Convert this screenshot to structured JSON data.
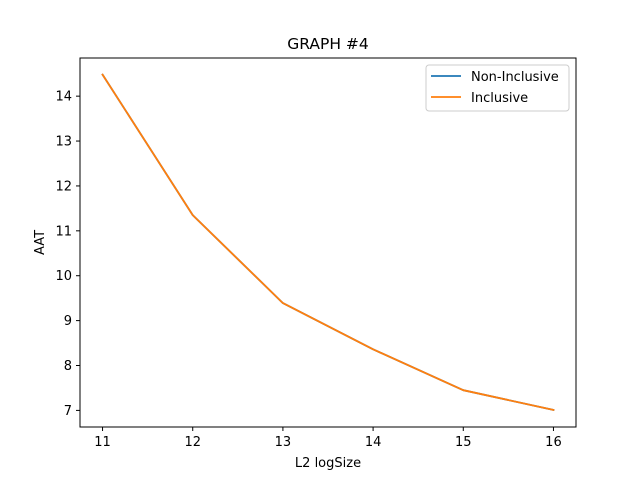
{
  "chart_data": {
    "type": "line",
    "title": "GRAPH #4",
    "xlabel": "L2 logSize",
    "ylabel": "AAT",
    "x": [
      11,
      12,
      13,
      14,
      15,
      16
    ],
    "xticks": [
      11,
      12,
      13,
      14,
      15,
      16
    ],
    "yticks": [
      7,
      8,
      9,
      10,
      11,
      12,
      13,
      14
    ],
    "xlim": [
      10.75,
      16.25
    ],
    "ylim": [
      6.63,
      14.85
    ],
    "grid": false,
    "legend_position": "top-right",
    "series": [
      {
        "name": "Non-Inclusive",
        "color": "#1f77b4",
        "values": [
          14.48,
          11.35,
          9.39,
          8.36,
          7.45,
          7.01
        ]
      },
      {
        "name": "Inclusive",
        "color": "#ff7f0e",
        "values": [
          14.48,
          11.35,
          9.39,
          8.36,
          7.45,
          7.01
        ]
      }
    ]
  }
}
